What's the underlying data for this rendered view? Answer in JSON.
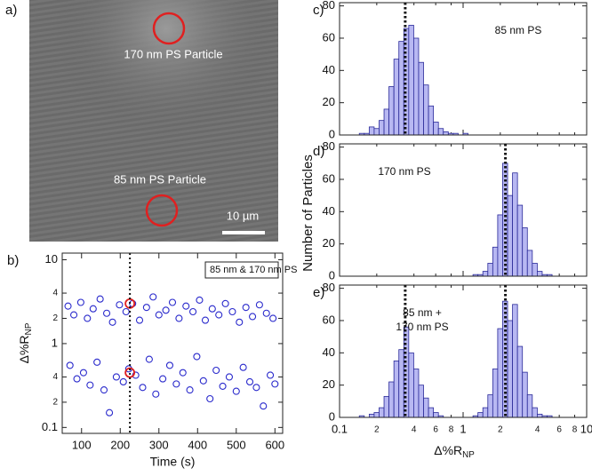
{
  "image_panel": {
    "panel_label": "a)",
    "labels": [
      "170 nm PS Particle",
      "85 nm PS Particle"
    ],
    "scale_bar": "10 µm"
  },
  "shared_y_label": "Number of Particles",
  "chart_data": [
    {
      "type": "scatter",
      "panel_label": "b)",
      "color": "#2a2acc",
      "x": [
        65,
        80,
        98,
        115,
        130,
        148,
        165,
        180,
        198,
        215,
        232,
        250,
        268,
        285,
        300,
        318,
        335,
        352,
        370,
        388,
        405,
        420,
        438,
        455,
        472,
        490,
        508,
        525,
        542,
        560,
        578,
        595,
        70,
        88,
        105,
        122,
        140,
        158,
        172,
        190,
        208,
        222,
        240,
        258,
        275,
        292,
        310,
        328,
        345,
        362,
        380,
        398,
        415,
        432,
        448,
        465,
        482,
        500,
        518,
        535,
        552,
        570,
        588,
        600
      ],
      "values": [
        2.8,
        2.2,
        3.1,
        2.0,
        2.6,
        3.4,
        2.3,
        1.8,
        2.9,
        2.4,
        3.0,
        1.9,
        2.7,
        3.6,
        2.2,
        2.5,
        3.1,
        2.0,
        2.8,
        2.4,
        3.3,
        1.9,
        2.6,
        2.2,
        3.0,
        2.4,
        1.8,
        2.7,
        2.1,
        2.9,
        2.3,
        2.0,
        0.55,
        0.38,
        0.45,
        0.32,
        0.6,
        0.28,
        0.15,
        0.4,
        0.35,
        0.5,
        0.42,
        0.3,
        0.65,
        0.25,
        0.38,
        0.55,
        0.33,
        0.45,
        0.28,
        0.7,
        0.36,
        0.22,
        0.48,
        0.31,
        0.4,
        0.27,
        0.52,
        0.35,
        0.3,
        0.18,
        0.42,
        0.33
      ],
      "highlights": {
        "x": [
          225,
          225
        ],
        "values": [
          3.0,
          0.45
        ],
        "color": "#e02020"
      },
      "reference_lines": [
        225
      ],
      "annotation": "85 nm & 170 nm PS",
      "x_label": "Time (s)",
      "y_label": "Δ%R",
      "y_label_sub": "NP",
      "xlim": [
        50,
        620
      ],
      "xticks": [
        100,
        200,
        300,
        400,
        500,
        600
      ],
      "log_y": true,
      "ylim": [
        0.085,
        12
      ],
      "yticks": [
        0.1,
        {
          "value": 0.2,
          "label": "2"
        },
        {
          "value": 0.4,
          "label": "4"
        },
        1,
        {
          "value": 2,
          "label": "2"
        },
        {
          "value": 4,
          "label": "4"
        },
        10
      ]
    },
    {
      "type": "histogram",
      "panel_label": "c)",
      "annotation": [
        "85 nm PS"
      ],
      "color": "#b8b8f2",
      "edge_color": "#2a2a99",
      "bins": [
        0.1445,
        0.1585,
        0.1738,
        0.1905,
        0.2089,
        0.2291,
        0.2512,
        0.2754,
        0.302,
        0.3311,
        0.3631,
        0.3981,
        0.4365,
        0.4786,
        0.5248,
        0.5754,
        0.631,
        0.6918,
        0.7586,
        0.8318,
        0.912,
        1,
        1.096,
        1.202
      ],
      "values": [
        1,
        1,
        5,
        4,
        9,
        16,
        30,
        47,
        58,
        66,
        68,
        60,
        45,
        31,
        18,
        8,
        4,
        2,
        1,
        1,
        0,
        1,
        0
      ],
      "reference_lines": [
        0.34
      ],
      "log_x": true,
      "xlim": [
        0.1,
        10
      ],
      "ylim": [
        0,
        82
      ],
      "yticks": [
        0,
        20,
        40,
        60,
        80
      ]
    },
    {
      "type": "histogram",
      "panel_label": "d)",
      "annotation": [
        "170 nm PS"
      ],
      "color": "#b8b8f2",
      "edge_color": "#2a2a99",
      "bins": [
        1.202,
        1.318,
        1.445,
        1.585,
        1.738,
        1.905,
        2.089,
        2.291,
        2.512,
        2.754,
        3.02,
        3.311,
        3.631,
        3.981,
        4.365,
        4.786,
        5.248
      ],
      "values": [
        1,
        1,
        3,
        8,
        18,
        38,
        70,
        50,
        64,
        44,
        30,
        16,
        8,
        3,
        1,
        1
      ],
      "reference_lines": [
        2.2
      ],
      "log_x": true,
      "xlim": [
        0.1,
        10
      ],
      "ylim": [
        0,
        82
      ],
      "yticks": [
        0,
        20,
        40,
        60,
        80
      ]
    },
    {
      "type": "histogram",
      "panel_label": "e)",
      "annotation": [
        "85 nm +",
        "170 nm PS"
      ],
      "color": "#b8b8f2",
      "edge_color": "#2a2a99",
      "bins": [
        0.1445,
        0.1585,
        0.1738,
        0.1905,
        0.2089,
        0.2291,
        0.2512,
        0.2754,
        0.302,
        0.3311,
        0.3631,
        0.3981,
        0.4365,
        0.4786,
        0.5248,
        0.5754,
        0.631,
        0.6918,
        0.7586,
        0.8318,
        0.912,
        1,
        1.096,
        1.202,
        1.318,
        1.445,
        1.585,
        1.738,
        1.905,
        2.089,
        2.291,
        2.512,
        2.754,
        3.02,
        3.311,
        3.631,
        3.981,
        4.365,
        4.786,
        5.248
      ],
      "values": [
        1,
        0,
        2,
        3,
        6,
        13,
        22,
        35,
        42,
        56,
        40,
        30,
        20,
        12,
        6,
        3,
        1,
        0,
        0,
        0,
        0,
        0,
        0,
        1,
        3,
        6,
        14,
        30,
        55,
        72,
        60,
        70,
        44,
        28,
        14,
        6,
        2,
        1,
        1
      ],
      "reference_lines": [
        0.34,
        2.2
      ],
      "log_x": true,
      "xlim": [
        0.1,
        10
      ],
      "ylim": [
        0,
        82
      ],
      "yticks": [
        0,
        20,
        40,
        60,
        80
      ],
      "xticks": [
        0.1,
        {
          "value": 0.2,
          "label": "2"
        },
        {
          "value": 0.4,
          "label": "4"
        },
        {
          "value": 0.6,
          "label": "6"
        },
        {
          "value": 0.8,
          "label": "8"
        },
        1,
        {
          "value": 2,
          "label": "2"
        },
        {
          "value": 4,
          "label": "4"
        },
        {
          "value": 6,
          "label": "6"
        },
        {
          "value": 8,
          "label": "8"
        },
        10
      ],
      "x_label": "Δ%R",
      "x_label_sub": "NP"
    }
  ]
}
